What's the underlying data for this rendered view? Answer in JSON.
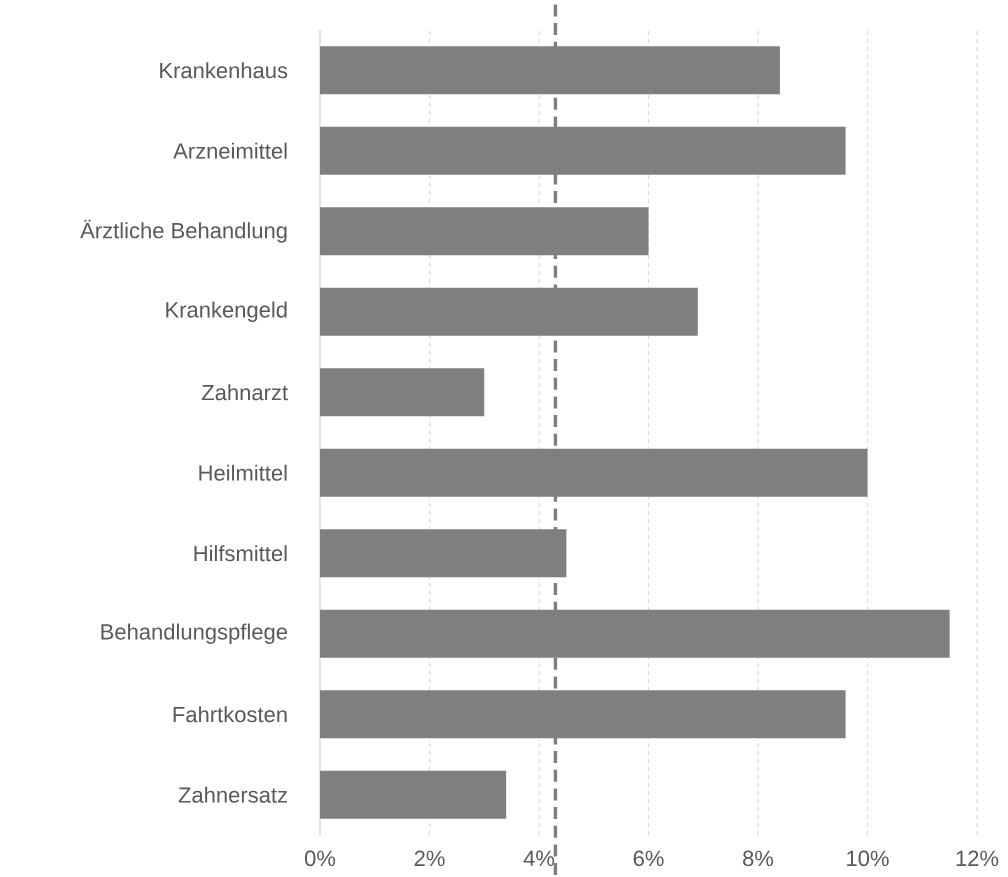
{
  "chart_data": {
    "type": "bar",
    "orientation": "horizontal",
    "color": "#7f7f7f",
    "categories": [
      "Krankenhaus",
      "Arzneimittel",
      "Ärztliche Behandlung",
      "Krankengeld",
      "Zahnarzt",
      "Heilmittel",
      "Hilfsmittel",
      "Behandlungspflege",
      "Fahrtkosten",
      "Zahnersatz"
    ],
    "values": [
      8.4,
      9.6,
      6.0,
      6.9,
      3.0,
      10.0,
      4.5,
      11.5,
      9.6,
      3.4
    ],
    "xlim": [
      0,
      12
    ],
    "xticks": [
      {
        "value": 0,
        "label": "0%"
      },
      {
        "value": 2,
        "label": "2%"
      },
      {
        "value": 4,
        "label": "4%"
      },
      {
        "value": 6,
        "label": "6%"
      },
      {
        "value": 8,
        "label": "8%"
      },
      {
        "value": 10,
        "label": "10%"
      },
      {
        "value": 12,
        "label": "12%"
      }
    ],
    "grid": "x",
    "ref_lines": [
      {
        "axis": "x",
        "value": 4.3,
        "color": "#7f7f7f",
        "line_style": "dashed"
      }
    ]
  }
}
